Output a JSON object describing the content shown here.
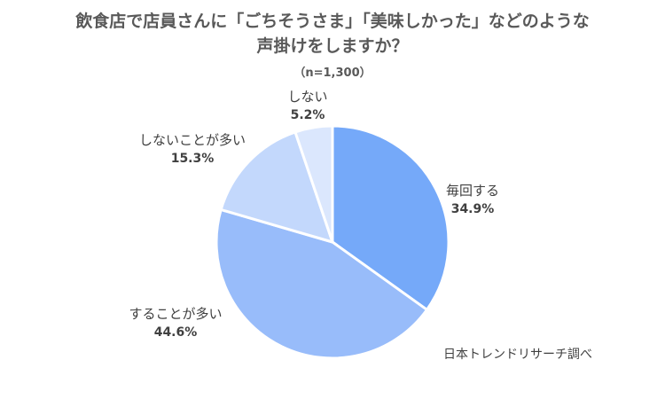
{
  "chart_data": {
    "type": "pie",
    "title_lines": [
      "飲食店で店員さんに「ごちそうさま」「美味しかった」などのような",
      "声掛けをしますか？"
    ],
    "subtitle": "（n=1,300）",
    "source": "日本トレンドリサーチ調べ",
    "slices": [
      {
        "label": "毎回する",
        "value": 34.9,
        "pct_label": "34.9%",
        "color": "#75A9F9"
      },
      {
        "label": "することが多い",
        "value": 44.6,
        "pct_label": "44.6%",
        "color": "#98BCFA"
      },
      {
        "label": "しないことが多い",
        "value": 15.3,
        "pct_label": "15.3%",
        "color": "#C3D8FC"
      },
      {
        "label": "しない",
        "value": 5.2,
        "pct_label": "5.2%",
        "color": "#DBE7FD"
      }
    ]
  }
}
